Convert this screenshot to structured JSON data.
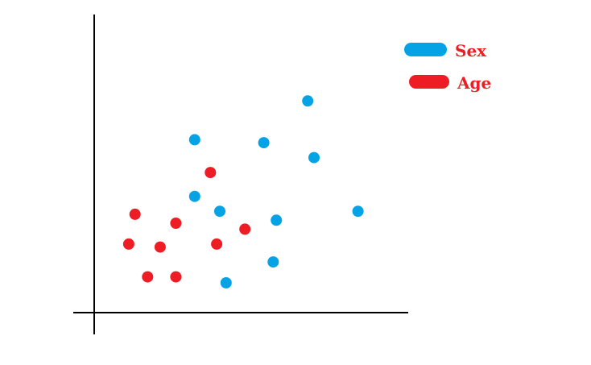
{
  "chart_data": {
    "type": "scatter",
    "title": "",
    "xlabel": "",
    "ylabel": "",
    "xlim": [
      0,
      10
    ],
    "ylim": [
      0,
      10
    ],
    "grid": false,
    "legend_position": "top-right",
    "series": [
      {
        "name": "Sex",
        "color": "#05a3e6",
        "points": [
          {
            "x": 3.2,
            "y": 5.8
          },
          {
            "x": 5.4,
            "y": 5.7
          },
          {
            "x": 6.8,
            "y": 7.1
          },
          {
            "x": 7.0,
            "y": 5.2
          },
          {
            "x": 3.2,
            "y": 3.9
          },
          {
            "x": 4.0,
            "y": 3.4
          },
          {
            "x": 5.8,
            "y": 3.1
          },
          {
            "x": 8.4,
            "y": 3.4
          },
          {
            "x": 5.7,
            "y": 1.7
          },
          {
            "x": 4.2,
            "y": 1.0
          }
        ]
      },
      {
        "name": "Age",
        "color": "#ee1c24",
        "points": [
          {
            "x": 3.7,
            "y": 4.7
          },
          {
            "x": 1.3,
            "y": 3.3
          },
          {
            "x": 2.6,
            "y": 3.0
          },
          {
            "x": 4.8,
            "y": 2.8
          },
          {
            "x": 1.1,
            "y": 2.3
          },
          {
            "x": 2.1,
            "y": 2.2
          },
          {
            "x": 3.9,
            "y": 2.3
          },
          {
            "x": 1.7,
            "y": 1.2
          },
          {
            "x": 2.6,
            "y": 1.2
          }
        ]
      }
    ]
  }
}
